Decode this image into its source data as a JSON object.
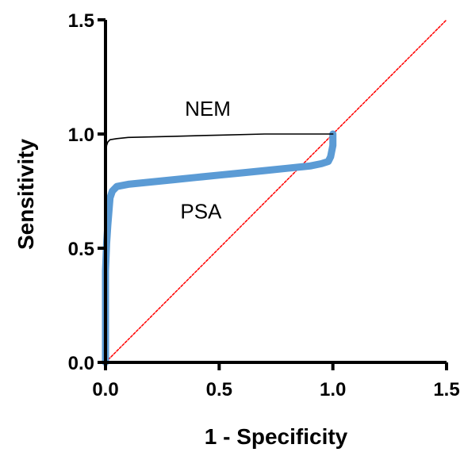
{
  "chart_data": {
    "type": "line",
    "xlabel": "1 - Specificity",
    "ylabel": "Sensitivity",
    "xlim": [
      0,
      1.5
    ],
    "ylim": [
      0,
      1.5
    ],
    "x_ticks": [
      "0.0",
      "0.5",
      "1.0",
      "1.5"
    ],
    "y_ticks": [
      "0.0",
      "0.5",
      "1.0",
      "1.5"
    ],
    "x_tick_values": [
      0,
      0.5,
      1.0,
      1.5
    ],
    "y_tick_values": [
      0,
      0.5,
      1.0,
      1.5
    ],
    "grid": false,
    "legend": "none",
    "series": [
      {
        "name": "NEM",
        "color": "#000000",
        "style": "thin-line",
        "x": [
          0,
          0,
          0,
          0.005,
          0.01,
          0.02,
          0.05,
          0.1,
          0.3,
          0.5,
          0.7,
          0.9,
          1.0,
          1.0
        ],
        "y": [
          0,
          0.66,
          0.9,
          0.95,
          0.965,
          0.975,
          0.98,
          0.985,
          0.99,
          0.995,
          1.0,
          1.0,
          1.0,
          1.0
        ]
      },
      {
        "name": "PSA",
        "color": "#5b9bd5",
        "style": "thick-line",
        "x": [
          0,
          0,
          0.005,
          0.01,
          0.02,
          0.03,
          0.05,
          0.1,
          0.2,
          0.3,
          0.4,
          0.5,
          0.6,
          0.7,
          0.8,
          0.9,
          0.95,
          0.98,
          0.99,
          1.0,
          1.0,
          1.0
        ],
        "y": [
          0,
          0.4,
          0.52,
          0.6,
          0.72,
          0.75,
          0.77,
          0.78,
          0.79,
          0.8,
          0.81,
          0.82,
          0.83,
          0.84,
          0.85,
          0.86,
          0.87,
          0.88,
          0.9,
          0.95,
          0.98,
          1.0
        ]
      },
      {
        "name": "",
        "color": "#ff0000",
        "style": "dashed-reference",
        "x": [
          0,
          1.5
        ],
        "y": [
          0,
          1.5
        ]
      }
    ],
    "annotations": [
      {
        "text": "NEM",
        "x": 0.45,
        "y": 1.08
      },
      {
        "text": "PSA",
        "x": 0.42,
        "y": 0.63
      }
    ]
  }
}
